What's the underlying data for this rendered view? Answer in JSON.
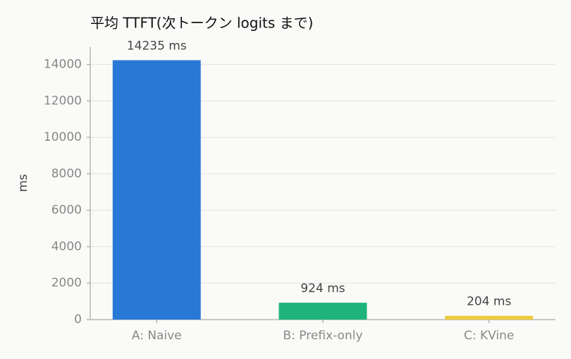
{
  "chart_data": {
    "type": "bar",
    "title": "平均 TTFT(次トークン logits まで)",
    "y_label": "ms",
    "categories": [
      "A: Naive",
      "B: Prefix-only",
      "C: KVine"
    ],
    "values": [
      14235,
      924,
      204
    ],
    "value_labels": [
      "14235 ms",
      "924 ms",
      "204 ms"
    ],
    "colors": [
      "#2a78d6",
      "#1db37a",
      "#f0c93a"
    ],
    "ylim": [
      0,
      14950
    ],
    "yticks": [
      0,
      2000,
      4000,
      6000,
      8000,
      10000,
      12000,
      14000
    ],
    "grid": true
  }
}
